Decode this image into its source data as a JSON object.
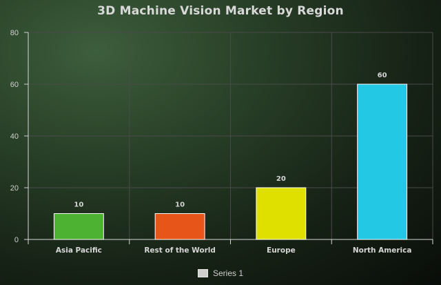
{
  "chart_data": {
    "type": "bar",
    "title": "3D Machine Vision Market by Region",
    "categories": [
      "Asia Pacific",
      "Rest of the World",
      "Europe",
      "North America"
    ],
    "series": [
      {
        "name": "Series 1",
        "values": [
          10,
          10,
          20,
          60
        ]
      }
    ],
    "bar_colors": [
      "#4db131",
      "#e85519",
      "#dfe000",
      "#23c9e4"
    ],
    "ylim": [
      0,
      80
    ],
    "yticks": [
      0,
      20,
      40,
      60,
      80
    ],
    "grid": true,
    "legend_position": "bottom-center",
    "data_labels": true
  }
}
